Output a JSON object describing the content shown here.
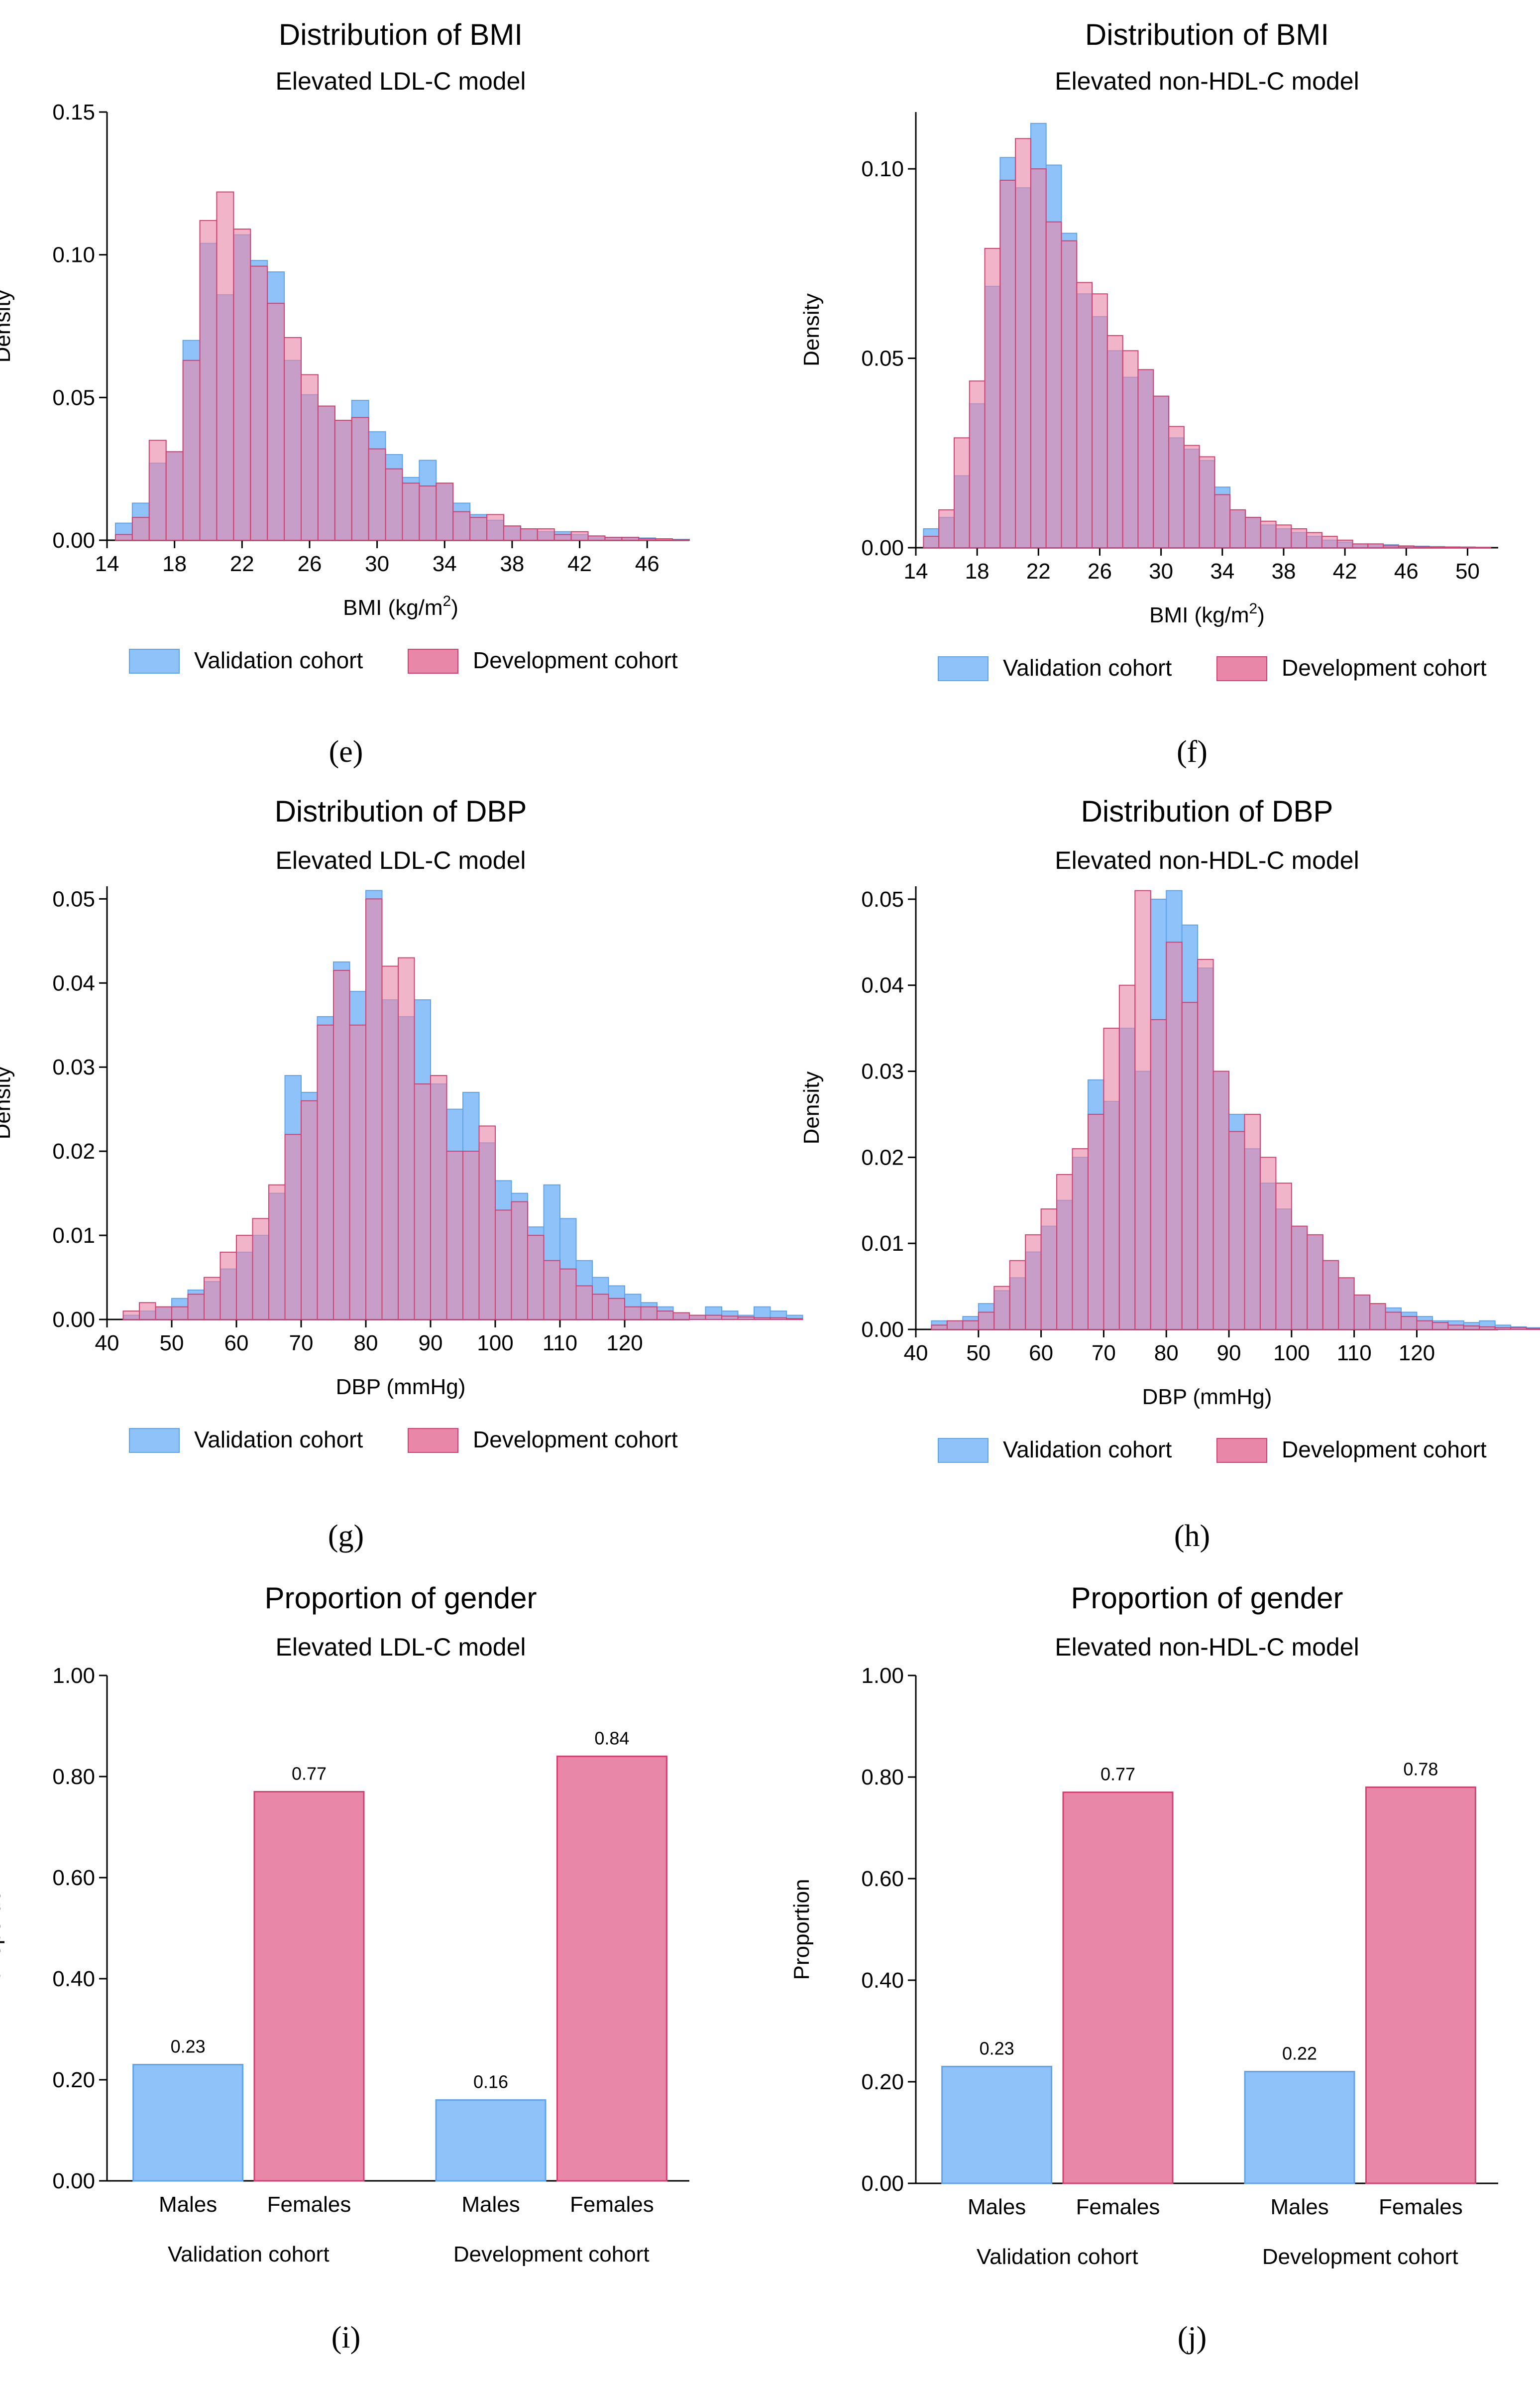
{
  "colors": {
    "validation": "#90c2fa",
    "validation_edge": "#5fa4ea",
    "development": "#e887a8",
    "development_edge": "#d2406f",
    "overlap": "#9f5ea0"
  },
  "panels": [
    {
      "id": "e",
      "label": "(e)",
      "title": "Distribution of BMI",
      "subtitle": "Elevated LDL-C model",
      "chart_data": {
        "type": "histogram",
        "xlabel_main": "BMI (kg/m",
        "xlabel_sup": "2",
        "xlabel_end": ")",
        "ylabel": "Density",
        "xlim": [
          14,
          48.5
        ],
        "ylim": [
          0,
          0.15
        ],
        "bin_width": 1,
        "xticks": [
          "14",
          "18",
          "22",
          "26",
          "30",
          "34",
          "38",
          "42",
          "46"
        ],
        "yticks": [
          "0.00",
          "0.05",
          "0.10",
          "0.15"
        ],
        "bins_start": 14.5,
        "series": [
          {
            "name": "Validation cohort",
            "values": [
              0.006,
              0.013,
              0.027,
              0.031,
              0.07,
              0.104,
              0.086,
              0.107,
              0.098,
              0.094,
              0.063,
              0.051,
              0.047,
              0.042,
              0.049,
              0.038,
              0.03,
              0.022,
              0.028,
              0.02,
              0.013,
              0.009,
              0.007,
              0.005,
              0.004,
              0.003,
              0.003,
              0.002,
              0.0015,
              0.001,
              0.001,
              0.0008,
              0.0005,
              0.0003
            ]
          },
          {
            "name": "Development cohort",
            "values": [
              0.002,
              0.008,
              0.035,
              0.031,
              0.063,
              0.112,
              0.122,
              0.109,
              0.096,
              0.083,
              0.071,
              0.058,
              0.047,
              0.042,
              0.043,
              0.032,
              0.025,
              0.02,
              0.019,
              0.02,
              0.01,
              0.008,
              0.009,
              0.005,
              0.004,
              0.004,
              0.002,
              0.003,
              0.0015,
              0.001,
              0.001,
              0.0005,
              0.0005,
              0.0002
            ]
          }
        ]
      },
      "legend": [
        "Validation cohort",
        "Development cohort"
      ]
    },
    {
      "id": "f",
      "label": "(f)",
      "title": "Distribution of BMI",
      "subtitle": "Elevated non-HDL-C model",
      "chart_data": {
        "type": "histogram",
        "xlabel_main": "BMI (kg/m",
        "xlabel_sup": "2",
        "xlabel_end": ")",
        "ylabel": "Density",
        "xlim": [
          14,
          52
        ],
        "ylim": [
          0,
          0.115
        ],
        "bin_width": 1,
        "xticks": [
          "14",
          "18",
          "22",
          "26",
          "30",
          "34",
          "38",
          "42",
          "46",
          "50"
        ],
        "yticks": [
          "0.00",
          "0.05",
          "0.10"
        ],
        "bins_start": 14.5,
        "series": [
          {
            "name": "Validation cohort",
            "values": [
              0.005,
              0.008,
              0.019,
              0.038,
              0.069,
              0.103,
              0.095,
              0.112,
              0.101,
              0.083,
              0.067,
              0.061,
              0.052,
              0.045,
              0.047,
              0.04,
              0.029,
              0.026,
              0.023,
              0.016,
              0.01,
              0.008,
              0.006,
              0.005,
              0.004,
              0.003,
              0.002,
              0.0015,
              0.001,
              0.001,
              0.0008,
              0.0005,
              0.0004,
              0.0003,
              0.0002,
              0.0002,
              0.0001
            ]
          },
          {
            "name": "Development cohort",
            "values": [
              0.003,
              0.01,
              0.029,
              0.044,
              0.079,
              0.097,
              0.108,
              0.1,
              0.086,
              0.081,
              0.07,
              0.067,
              0.056,
              0.052,
              0.047,
              0.04,
              0.032,
              0.027,
              0.024,
              0.014,
              0.01,
              0.008,
              0.007,
              0.006,
              0.005,
              0.004,
              0.003,
              0.002,
              0.001,
              0.001,
              0.0005,
              0.0004,
              0.0003,
              0.0002,
              0.0002,
              0.0001,
              0.0001
            ]
          }
        ]
      },
      "legend": [
        "Validation cohort",
        "Development cohort"
      ]
    },
    {
      "id": "g",
      "label": "(g)",
      "title": "Distribution of DBP",
      "subtitle": "Elevated LDL-C model",
      "chart_data": {
        "type": "histogram",
        "xlabel_main": "DBP (mmHg)",
        "xlabel_sup": "",
        "xlabel_end": "",
        "ylabel": "Density",
        "xlim": [
          40,
          130
        ],
        "ylim": [
          0,
          0.0515
        ],
        "bin_width": 2.5,
        "xticks": [
          "40",
          "50",
          "60",
          "70",
          "80",
          "90",
          "100",
          "110",
          "120"
        ],
        "yticks": [
          "0.00",
          "0.01",
          "0.02",
          "0.03",
          "0.04",
          "0.05"
        ],
        "bins_start": 42.5,
        "series": [
          {
            "name": "Validation cohort",
            "values": [
              0.0005,
              0.001,
              0.0015,
              0.0025,
              0.0035,
              0.0045,
              0.006,
              0.008,
              0.01,
              0.015,
              0.029,
              0.027,
              0.036,
              0.0425,
              0.039,
              0.051,
              0.038,
              0.036,
              0.038,
              0.028,
              0.025,
              0.027,
              0.021,
              0.0165,
              0.015,
              0.011,
              0.016,
              0.012,
              0.007,
              0.005,
              0.004,
              0.003,
              0.002,
              0.0015,
              0.0008,
              0.0005,
              0.0015,
              0.001,
              0.0005,
              0.0015,
              0.001,
              0.0005
            ]
          },
          {
            "name": "Development cohort",
            "values": [
              0.001,
              0.002,
              0.0015,
              0.0015,
              0.003,
              0.005,
              0.008,
              0.01,
              0.012,
              0.016,
              0.022,
              0.026,
              0.035,
              0.0415,
              0.035,
              0.05,
              0.042,
              0.043,
              0.028,
              0.029,
              0.02,
              0.02,
              0.023,
              0.013,
              0.014,
              0.01,
              0.007,
              0.006,
              0.004,
              0.003,
              0.0025,
              0.0015,
              0.0015,
              0.001,
              0.0008,
              0.0005,
              0.0005,
              0.0004,
              0.0003,
              0.0002,
              0.0002,
              0.0001
            ]
          }
        ]
      },
      "legend": [
        "Validation cohort",
        "Development cohort"
      ]
    },
    {
      "id": "h",
      "label": "(h)",
      "title": "Distribution of DBP",
      "subtitle": "Elevated non-HDL-C model",
      "chart_data": {
        "type": "histogram",
        "xlabel_main": "DBP (mmHg)",
        "xlabel_sup": "",
        "xlabel_end": "",
        "ylabel": "Density",
        "xlim": [
          40,
          133
        ],
        "ylim": [
          0,
          0.0515
        ],
        "bin_width": 2.5,
        "xticks": [
          "40",
          "50",
          "60",
          "70",
          "80",
          "90",
          "100",
          "110",
          "120"
        ],
        "yticks": [
          "0.00",
          "0.01",
          "0.02",
          "0.03",
          "0.04",
          "0.05"
        ],
        "bins_start": 42.5,
        "series": [
          {
            "name": "Validation cohort",
            "values": [
              0.001,
              0.001,
              0.0015,
              0.003,
              0.0045,
              0.006,
              0.009,
              0.012,
              0.015,
              0.02,
              0.029,
              0.0265,
              0.035,
              0.03,
              0.05,
              0.051,
              0.047,
              0.042,
              0.03,
              0.025,
              0.021,
              0.017,
              0.014,
              0.012,
              0.011,
              0.008,
              0.006,
              0.004,
              0.003,
              0.0025,
              0.002,
              0.0015,
              0.001,
              0.001,
              0.0008,
              0.001,
              0.0005,
              0.0003,
              0.0002,
              0.0002,
              0.0001,
              0.0001
            ]
          },
          {
            "name": "Development cohort",
            "values": [
              0.0005,
              0.001,
              0.001,
              0.002,
              0.005,
              0.008,
              0.011,
              0.014,
              0.018,
              0.021,
              0.025,
              0.035,
              0.04,
              0.051,
              0.036,
              0.045,
              0.038,
              0.043,
              0.03,
              0.023,
              0.025,
              0.02,
              0.017,
              0.012,
              0.011,
              0.008,
              0.006,
              0.004,
              0.003,
              0.002,
              0.0015,
              0.001,
              0.0008,
              0.0005,
              0.0004,
              0.0003,
              0.0002,
              0.0002,
              0.0001,
              0.0001,
              0.0001,
              0.0001
            ]
          }
        ]
      },
      "legend": [
        "Validation cohort",
        "Development cohort"
      ]
    },
    {
      "id": "i",
      "label": "(i)",
      "title": "Proportion of gender",
      "subtitle": "Elevated LDL-C model",
      "chart_data": {
        "type": "bar",
        "ylabel": "Proportion",
        "ylim": [
          0,
          1
        ],
        "yticks": [
          "0.00",
          "0.20",
          "0.40",
          "0.60",
          "0.80",
          "1.00"
        ],
        "groups": [
          "Validation cohort",
          "Development cohort"
        ],
        "categories": [
          "Males",
          "Females"
        ],
        "values": [
          [
            0.23,
            0.77
          ],
          [
            0.16,
            0.84
          ]
        ],
        "value_labels": [
          [
            "0.23",
            "0.77"
          ],
          [
            "0.16",
            "0.84"
          ]
        ]
      }
    },
    {
      "id": "j",
      "label": "(j)",
      "title": "Proportion of gender",
      "subtitle": "Elevated non-HDL-C model",
      "chart_data": {
        "type": "bar",
        "ylabel": "Proportion",
        "ylim": [
          0,
          1
        ],
        "yticks": [
          "0.00",
          "0.20",
          "0.40",
          "0.60",
          "0.80",
          "1.00"
        ],
        "groups": [
          "Validation cohort",
          "Development cohort"
        ],
        "categories": [
          "Males",
          "Females"
        ],
        "values": [
          [
            0.23,
            0.77
          ],
          [
            0.22,
            0.78
          ]
        ],
        "value_labels": [
          [
            "0.23",
            "0.77"
          ],
          [
            "0.22",
            "0.78"
          ]
        ]
      }
    }
  ]
}
